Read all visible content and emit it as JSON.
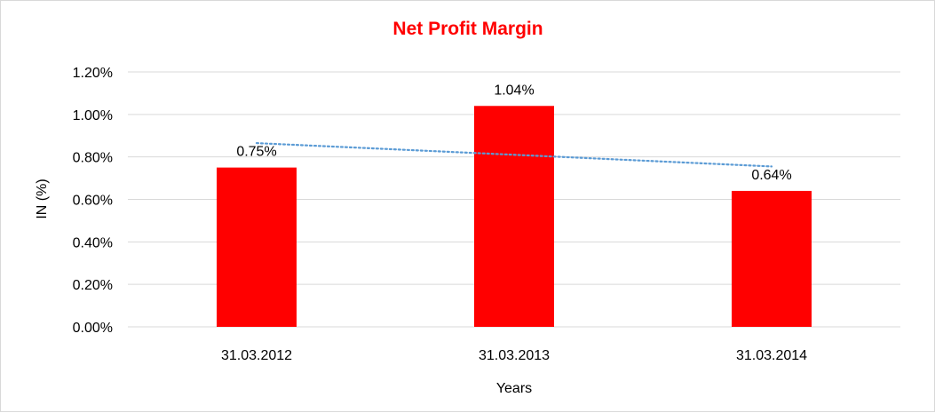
{
  "chart_data": {
    "type": "bar",
    "title": "Net Profit Margin",
    "xlabel": "Years",
    "ylabel": "IN (%)",
    "categories": [
      "31.03.2012",
      "31.03.2013",
      "31.03.2014"
    ],
    "values": [
      0.75,
      1.04,
      0.64
    ],
    "data_labels": [
      "0.75%",
      "1.04%",
      "0.64%"
    ],
    "ylim": [
      0,
      1.2
    ],
    "yticks": [
      0,
      0.2,
      0.4,
      0.6,
      0.8,
      1.0,
      1.2
    ],
    "ytick_labels": [
      "0.00%",
      "0.20%",
      "0.40%",
      "0.60%",
      "0.80%",
      "1.00%",
      "1.20%"
    ],
    "trendline": {
      "type": "linear",
      "style": "dotted",
      "color": "#5b9bd5"
    },
    "grid": true,
    "legend": "none",
    "colors": {
      "bar": "#ff0000",
      "title": "#ff0000",
      "grid": "#d9d9d9",
      "trendline": "#5b9bd5"
    }
  }
}
